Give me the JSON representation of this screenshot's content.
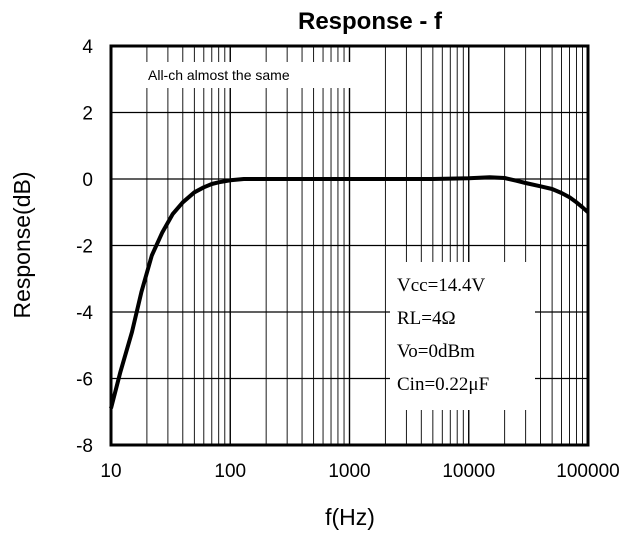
{
  "chart_data": {
    "type": "line",
    "title": "Response - f",
    "xlabel": "f(Hz)",
    "ylabel": "Response(dB)",
    "x_scale": "log",
    "xlim": [
      10,
      100000
    ],
    "ylim": [
      -8,
      4
    ],
    "x_ticks": [
      "10",
      "100",
      "1000",
      "10000",
      "100000"
    ],
    "y_ticks": [
      "4",
      "2",
      "0",
      "-2",
      "-4",
      "-6",
      "-8"
    ],
    "grid": true,
    "series": [
      {
        "x": [
          10,
          12,
          15,
          18,
          22,
          27,
          33,
          40,
          50,
          60,
          70,
          80,
          100,
          130,
          150,
          200,
          500,
          1000,
          5000,
          10000,
          15000,
          20000,
          25000,
          30000,
          40000,
          50000,
          60000,
          70000,
          80000,
          90000,
          100000
        ],
        "y": [
          -6.9,
          -5.8,
          -4.6,
          -3.4,
          -2.3,
          -1.6,
          -1.05,
          -0.7,
          -0.4,
          -0.25,
          -0.15,
          -0.1,
          -0.04,
          0,
          0,
          0,
          0,
          0,
          0,
          0.02,
          0.05,
          0.03,
          -0.05,
          -0.12,
          -0.22,
          -0.3,
          -0.42,
          -0.55,
          -0.7,
          -0.85,
          -1.0
        ]
      }
    ],
    "annotations": {
      "note": "All-ch almost the same",
      "params": [
        "Vcc=14.4V",
        "RL=4Ω",
        "Vo=0dBm",
        "Cin=0.22μF"
      ]
    },
    "legend": "none"
  }
}
